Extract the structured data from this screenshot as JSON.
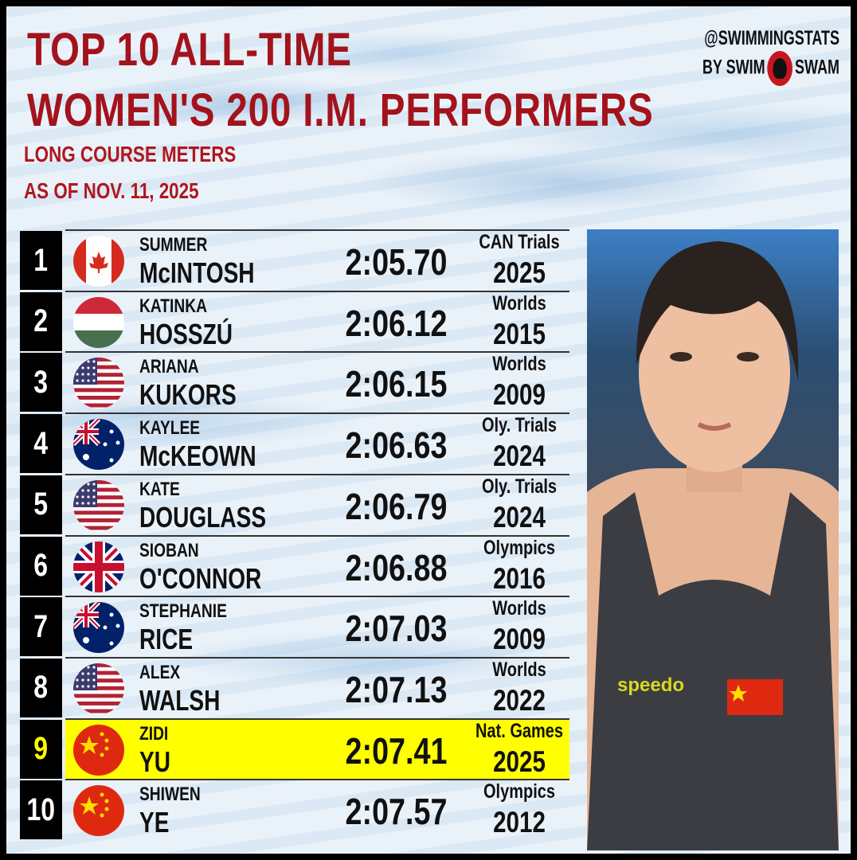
{
  "header": {
    "title_line1": "TOP 10 ALL-TIME",
    "title_line2": "WOMEN'S 200 I.M. PERFORMERS",
    "subtitle_line1": "LONG COURSE METERS",
    "subtitle_line2": "AS OF NOV. 11, 2025"
  },
  "brand": {
    "handle": "@SWIMMINGSTATS",
    "by_left": "BY SWIM",
    "by_right": "SWAM"
  },
  "colors": {
    "title": "#a3131c",
    "highlight": "#ffff00",
    "rank_box": "#000000"
  },
  "rows": [
    {
      "rank": "1",
      "flag": "canada",
      "first": "SUMMER",
      "last": "McINTOSH",
      "time": "2:05.70",
      "meet": "CAN Trials",
      "year": "2025"
    },
    {
      "rank": "2",
      "flag": "hungary",
      "first": "KATINKA",
      "last": "HOSSZÚ",
      "time": "2:06.12",
      "meet": "Worlds",
      "year": "2015"
    },
    {
      "rank": "3",
      "flag": "usa",
      "first": "ARIANA",
      "last": "KUKORS",
      "time": "2:06.15",
      "meet": "Worlds",
      "year": "2009"
    },
    {
      "rank": "4",
      "flag": "australia",
      "first": "KAYLEE",
      "last": "McKEOWN",
      "time": "2:06.63",
      "meet": "Oly. Trials",
      "year": "2024"
    },
    {
      "rank": "5",
      "flag": "usa",
      "first": "KATE",
      "last": "DOUGLASS",
      "time": "2:06.79",
      "meet": "Oly. Trials",
      "year": "2024"
    },
    {
      "rank": "6",
      "flag": "uk",
      "first": "SIOBAN",
      "last": "O'CONNOR",
      "time": "2:06.88",
      "meet": "Olympics",
      "year": "2016"
    },
    {
      "rank": "7",
      "flag": "australia",
      "first": "STEPHANIE",
      "last": "RICE",
      "time": "2:07.03",
      "meet": "Worlds",
      "year": "2009"
    },
    {
      "rank": "8",
      "flag": "usa",
      "first": "ALEX",
      "last": "WALSH",
      "time": "2:07.13",
      "meet": "Worlds",
      "year": "2022"
    },
    {
      "rank": "9",
      "flag": "china",
      "first": "ZIDI",
      "last": "YU",
      "time": "2:07.41",
      "meet": "Nat. Games",
      "year": "2025",
      "highlighted": true
    },
    {
      "rank": "10",
      "flag": "china",
      "first": "SHIWEN",
      "last": "YE",
      "time": "2:07.57",
      "meet": "Olympics",
      "year": "2012"
    }
  ],
  "photo": {
    "swimsuit_logo": "speedo"
  }
}
